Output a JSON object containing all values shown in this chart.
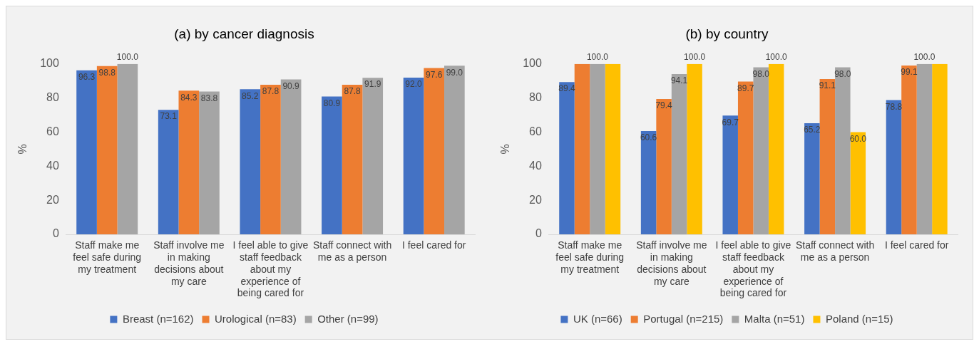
{
  "chart_data": [
    {
      "type": "bar",
      "title": "(a) by cancer diagnosis",
      "ylabel": "%",
      "categories": [
        "Staff make me feel safe during my treatment",
        "Staff involve me in making decisions about my care",
        "I feel able to give staff feedback about my experience of being cared for",
        "Staff connect with me as a person",
        "I feel cared for"
      ],
      "series": [
        {
          "name": "Breast (n=162)",
          "color": "#4472c4",
          "values": [
            96.3,
            73.1,
            85.2,
            80.9,
            92.0
          ],
          "value_labels": [
            "96.3",
            "73.1",
            "85.2",
            "80.9",
            "92.0"
          ]
        },
        {
          "name": "Urological (n=83)",
          "color": "#ed7d31",
          "values": [
            98.8,
            84.3,
            87.8,
            87.8,
            97.6
          ],
          "value_labels": [
            "98.8",
            "84.3",
            "87.8",
            "87.8",
            "97.6"
          ]
        },
        {
          "name": "Other (n=99)",
          "color": "#a5a5a5",
          "values": [
            100.0,
            83.8,
            90.9,
            91.9,
            99.0
          ],
          "value_labels": [
            "100.0",
            "83.8",
            "90.9",
            "91.9",
            "99.0"
          ]
        }
      ],
      "ylim": [
        0,
        100
      ],
      "yticks": [
        0,
        20,
        40,
        60,
        80,
        100
      ],
      "grid": false,
      "legend": "bottom"
    },
    {
      "type": "bar",
      "title": "(b) by country",
      "ylabel": "%",
      "categories": [
        "Staff make me feel safe during my treatment",
        "Staff involve me in making decisions about my care",
        "I feel able to give staff feedback about my experience of being cared for",
        "Staff connect with me as a person",
        "I feel cared for"
      ],
      "series": [
        {
          "name": "UK (n=66)",
          "color": "#4472c4",
          "values": [
            89.4,
            60.6,
            69.7,
            65.2,
            78.8
          ],
          "value_labels": [
            "89.4",
            "60.6",
            "69.7",
            "65.2",
            "78.8"
          ]
        },
        {
          "name": "Portugal (n=215)",
          "color": "#ed7d31",
          "values": [
            100,
            79.4,
            89.7,
            91.1,
            99.1
          ],
          "value_labels": [
            null,
            "79.4",
            "89.7",
            "91.1",
            "99.1"
          ]
        },
        {
          "name": "Malta (n=51)",
          "color": "#a5a5a5",
          "values": [
            100,
            94.1,
            98.0,
            98.0,
            100
          ],
          "value_labels": [
            "100.0",
            "94.1",
            "98.0",
            "98.0",
            "100.0"
          ]
        },
        {
          "name": "Poland (n=15)",
          "color": "#ffc000",
          "values": [
            100,
            100,
            100,
            60.0,
            100
          ],
          "value_labels": [
            null,
            "100.0",
            "100.0",
            "60.0",
            null
          ]
        }
      ],
      "ylim": [
        0,
        100
      ],
      "yticks": [
        0,
        20,
        40,
        60,
        80,
        100
      ],
      "grid": false,
      "legend": "bottom"
    }
  ]
}
